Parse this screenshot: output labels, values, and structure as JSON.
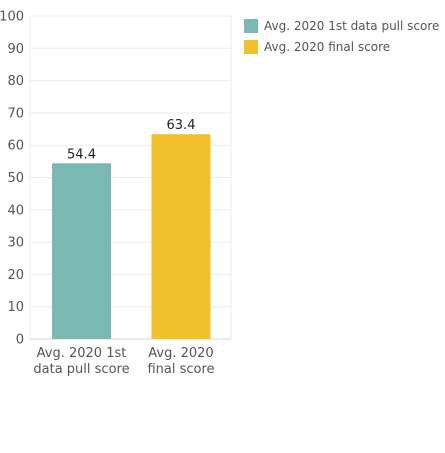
{
  "chart_data": {
    "type": "bar",
    "categories": [
      "Avg. 2020 1st data pull score",
      "Avg. 2020 final score"
    ],
    "category_label_lines": [
      [
        "Avg. 2020 1st",
        "data pull score"
      ],
      [
        "Avg. 2020",
        "final score"
      ]
    ],
    "values": [
      54.4,
      63.4
    ],
    "data_labels": [
      "54.4",
      "63.4"
    ],
    "colors": [
      "#7ab8b2",
      "#f0c12a"
    ],
    "yticks": [
      0,
      10,
      20,
      30,
      40,
      50,
      60,
      70,
      80,
      90,
      100
    ],
    "ylim": [
      0,
      100
    ],
    "grid": true,
    "legend_position": "top-right",
    "legend": [
      {
        "label": "Avg. 2020 1st data pull score",
        "color": "#7ab8b2"
      },
      {
        "label": "Avg. 2020 final score",
        "color": "#f0c12a"
      }
    ]
  }
}
